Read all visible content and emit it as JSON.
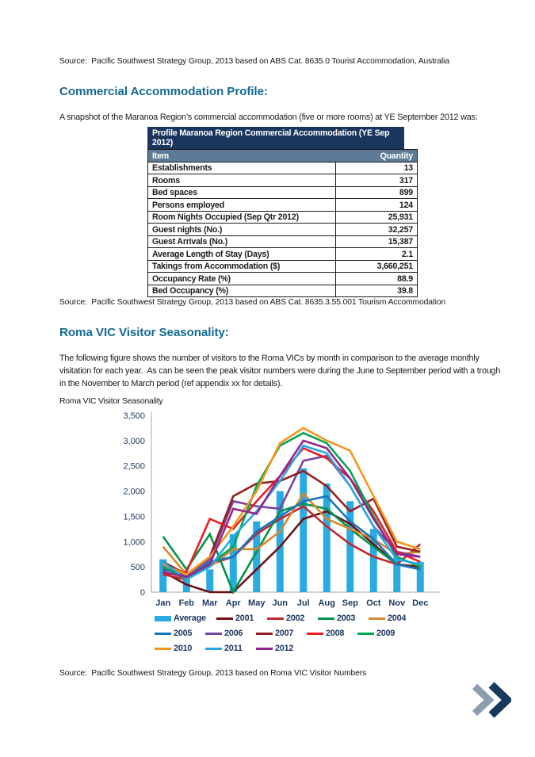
{
  "page": {
    "source_top": "Source:  Pacific Southwest Strategy Group, 2013 based on ABS Cat. 8635.0 Tourist Accommodation, Australia",
    "section1_heading": "Commercial Accommodation Profile:",
    "section1_paragraph": "A snapshot of the Maranoa Region’s commercial accommodation (five or more rooms) at YE September 2012 was:",
    "table_source": "Source:  Pacific Southwest Strategy Group, 2013 based on ABS Cat. 8635.3.55.001 Tourism Accommodation",
    "section2_heading": "Roma VIC Visitor Seasonality:",
    "section2_paragraph": "The following figure shows the number of visitors to the Roma VICs by month in comparison to the average monthly visitation for each year.  As can be seen the peak visitor numbers were during the June to September period with a trough in the November to March period (ref appendix xx for details).",
    "chart_caption": "Roma VIC Visitor Seasonality",
    "chart_source": "Source:  Pacific Southwest Strategy Group, 2013 based on Roma VIC Visitor Numbers"
  },
  "accommodation_table": {
    "title": "Profile Maranoa Region Commercial Accommodation (YE Sep 2012)",
    "columns": [
      "Item",
      "Quantity"
    ],
    "rows": [
      [
        "Establishments",
        "13"
      ],
      [
        "Rooms",
        "317"
      ],
      [
        "Bed spaces",
        "899"
      ],
      [
        "Persons employed",
        "124"
      ],
      [
        "Room Nights Occupied (Sep Qtr 2012)",
        "25,931"
      ],
      [
        "Guest nights (No.)",
        "32,257"
      ],
      [
        "Guest Arrivals (No.)",
        "15,387"
      ],
      [
        "Average Length of Stay (Days)",
        "2.1"
      ],
      [
        "Takings from Accommodation ($)",
        "3,660,251"
      ],
      [
        "Occupancy Rate (%)",
        "88.9"
      ],
      [
        "Bed Occupancy (%)",
        "39.8"
      ]
    ]
  },
  "chart_data": {
    "type": "bar",
    "title": "Roma VIC Visitor Seasonality",
    "xlabel": "",
    "ylabel": "",
    "ylim": [
      0,
      3500
    ],
    "ytick_step": 500,
    "grid": false,
    "legend_position": "bottom",
    "categories": [
      "Jan",
      "Feb",
      "Mar",
      "Apr",
      "May",
      "Jun",
      "Jul",
      "Aug",
      "Sep",
      "Oct",
      "Nov",
      "Dec"
    ],
    "series": [
      {
        "name": "Average",
        "type": "bar",
        "color": "#29abe2",
        "values": [
          650,
          300,
          450,
          1150,
          1400,
          2000,
          2450,
          2150,
          1800,
          1250,
          700,
          600
        ]
      },
      {
        "name": "2001",
        "type": "line",
        "color": "#6e1012",
        "values": [
          400,
          150,
          0,
          0,
          450,
          900,
          1450,
          1600,
          1350,
          950,
          550,
          500
        ]
      },
      {
        "name": "2002",
        "type": "line",
        "color": "#c1272d",
        "values": [
          350,
          250,
          550,
          700,
          1150,
          1450,
          1700,
          1300,
          950,
          700,
          550,
          950
        ]
      },
      {
        "name": "2003",
        "type": "line",
        "color": "#00944a",
        "values": [
          1100,
          450,
          1150,
          0,
          800,
          1600,
          1750,
          1650,
          1250,
          900,
          550,
          450
        ]
      },
      {
        "name": "2004",
        "type": "line",
        "color": "#d8882b",
        "values": [
          900,
          350,
          500,
          850,
          850,
          1200,
          1950,
          1450,
          1250,
          1050,
          750,
          800
        ]
      },
      {
        "name": "2005",
        "type": "line",
        "color": "#1c75bc",
        "values": [
          550,
          300,
          600,
          700,
          1200,
          1500,
          1800,
          1900,
          1400,
          1050,
          550,
          450
        ]
      },
      {
        "name": "2006",
        "type": "line",
        "color": "#7c4199",
        "values": [
          450,
          350,
          650,
          1800,
          1700,
          1650,
          2600,
          2700,
          2100,
          1300,
          800,
          700
        ]
      },
      {
        "name": "2007",
        "type": "line",
        "color": "#93201f",
        "values": [
          600,
          350,
          700,
          1900,
          2150,
          2200,
          2400,
          2100,
          1600,
          1850,
          900,
          800
        ]
      },
      {
        "name": "2008",
        "type": "line",
        "color": "#ed1c24",
        "values": [
          350,
          400,
          1450,
          1250,
          1800,
          2300,
          2850,
          2650,
          2250,
          1600,
          800,
          600
        ]
      },
      {
        "name": "2009",
        "type": "line",
        "color": "#00a651",
        "values": [
          500,
          250,
          550,
          900,
          2100,
          2900,
          3150,
          2950,
          2400,
          1500,
          700,
          500
        ]
      },
      {
        "name": "2010",
        "type": "line",
        "color": "#f7941d",
        "values": [
          550,
          350,
          700,
          1300,
          2000,
          2950,
          3250,
          3000,
          2800,
          1900,
          1000,
          850
        ]
      },
      {
        "name": "2011",
        "type": "line",
        "color": "#27aae1",
        "values": [
          600,
          250,
          500,
          1100,
          1600,
          2200,
          2900,
          2750,
          2100,
          1300,
          650,
          550
        ]
      },
      {
        "name": "2012",
        "type": "line",
        "color": "#92278f",
        "values": [
          400,
          300,
          550,
          1650,
          1550,
          2300,
          3000,
          2850,
          2250,
          1450,
          750,
          700
        ]
      }
    ]
  },
  "icons": {
    "next_page": "double-chevron-right",
    "chevron_gray": "#8c9dad",
    "chevron_navy": "#17395e"
  },
  "colors": {
    "heading": "#156a93",
    "table_title_bg": "#1b365d",
    "table_header_bg": "#5d7b97",
    "chart_text": "#1e3a5f",
    "axis": "#a6a6a6"
  }
}
